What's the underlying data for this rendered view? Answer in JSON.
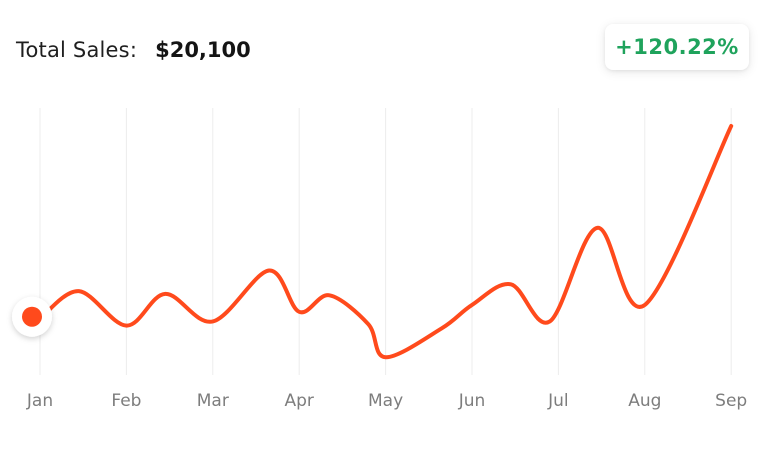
{
  "header": {
    "label": "Total Sales:",
    "value": "$20,100",
    "change": "+120.22%"
  },
  "colors": {
    "line": "#ff4a1c",
    "marker": "#ff4a1c",
    "change_positive": "#1fa35c",
    "grid": "#ececec",
    "tick_text": "#7d7d7d"
  },
  "chart_data": {
    "type": "line",
    "title": "",
    "xlabel": "",
    "ylabel": "",
    "categories": [
      "Jan",
      "Feb",
      "Mar",
      "Apr",
      "May",
      "Jun",
      "Jul",
      "Aug",
      "Sep"
    ],
    "x": [
      0,
      0.45,
      1,
      1.45,
      2,
      2.65,
      3,
      3.35,
      3.8,
      4,
      4.65,
      5,
      5.45,
      5.9,
      6.45,
      7,
      8
    ],
    "y": [
      30,
      50,
      25,
      48,
      28,
      65,
      35,
      47,
      26,
      2,
      23,
      40,
      55,
      28,
      96,
      40,
      170
    ],
    "ylim": [
      0,
      200
    ],
    "grid": "vertical",
    "legend": "none",
    "marker_index": 0
  }
}
